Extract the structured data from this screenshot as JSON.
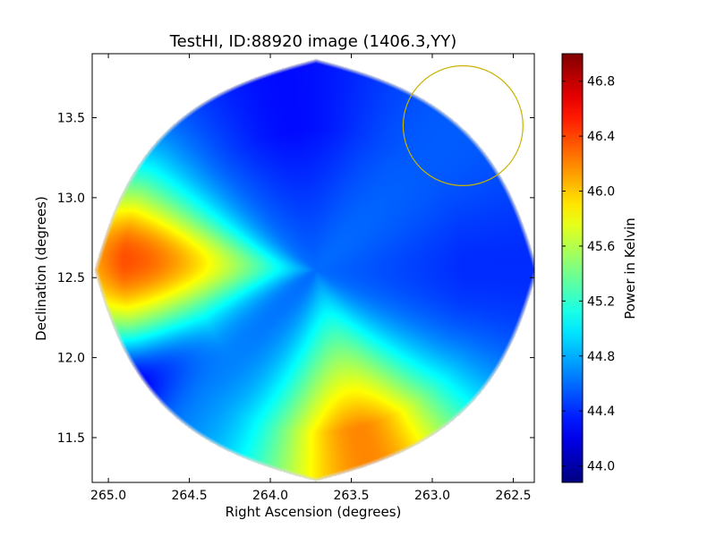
{
  "chart_data": {
    "type": "heatmap",
    "title": "TestHI, ID:88920 image (1406.3,YY)",
    "xlabel": "Right Ascension (degrees)",
    "ylabel": "Declination (degrees)",
    "xlim": [
      265.1,
      262.37
    ],
    "ylim": [
      11.22,
      13.9
    ],
    "xticks": [
      265.0,
      264.5,
      264.0,
      263.5,
      263.0,
      262.5
    ],
    "xtick_labels": [
      "265.0",
      "264.5",
      "264.0",
      "263.5",
      "263.0",
      "262.5"
    ],
    "yticks": [
      11.5,
      12.0,
      12.5,
      13.0,
      13.5
    ],
    "ytick_labels": [
      "11.5",
      "12.0",
      "12.5",
      "13.0",
      "13.5"
    ],
    "grid": false,
    "colormap": "jet",
    "colorbar": {
      "label": "Power in Kelvin",
      "range": [
        43.88,
        47.0
      ],
      "ticks": [
        44.0,
        44.4,
        44.8,
        45.2,
        45.6,
        46.0,
        46.4,
        46.8
      ],
      "tick_labels": [
        "44.0",
        "44.4",
        "44.8",
        "45.2",
        "45.6",
        "46.0",
        "46.4",
        "46.8"
      ]
    },
    "map": {
      "center": [
        263.72,
        12.55
      ],
      "half_width_deg": 1.37,
      "half_height_deg": 1.32,
      "beam_lobes": [
        {
          "direction": "east",
          "peak_kelvin": 46.9,
          "edge_kelvin": 45.2
        },
        {
          "direction": "south",
          "peak_kelvin": 46.2,
          "edge_kelvin": 45.3
        },
        {
          "direction": "north",
          "peak_kelvin": 44.3,
          "edge_kelvin": 44.9
        },
        {
          "direction": "west",
          "peak_kelvin": 44.4,
          "edge_kelvin": 44.8
        }
      ],
      "minimum_kelvin": 43.9
    },
    "annotations": [
      {
        "type": "circle",
        "ra_center": 262.81,
        "dec_center": 13.45,
        "radius_deg": 0.37,
        "color": "#c8b400"
      }
    ]
  }
}
